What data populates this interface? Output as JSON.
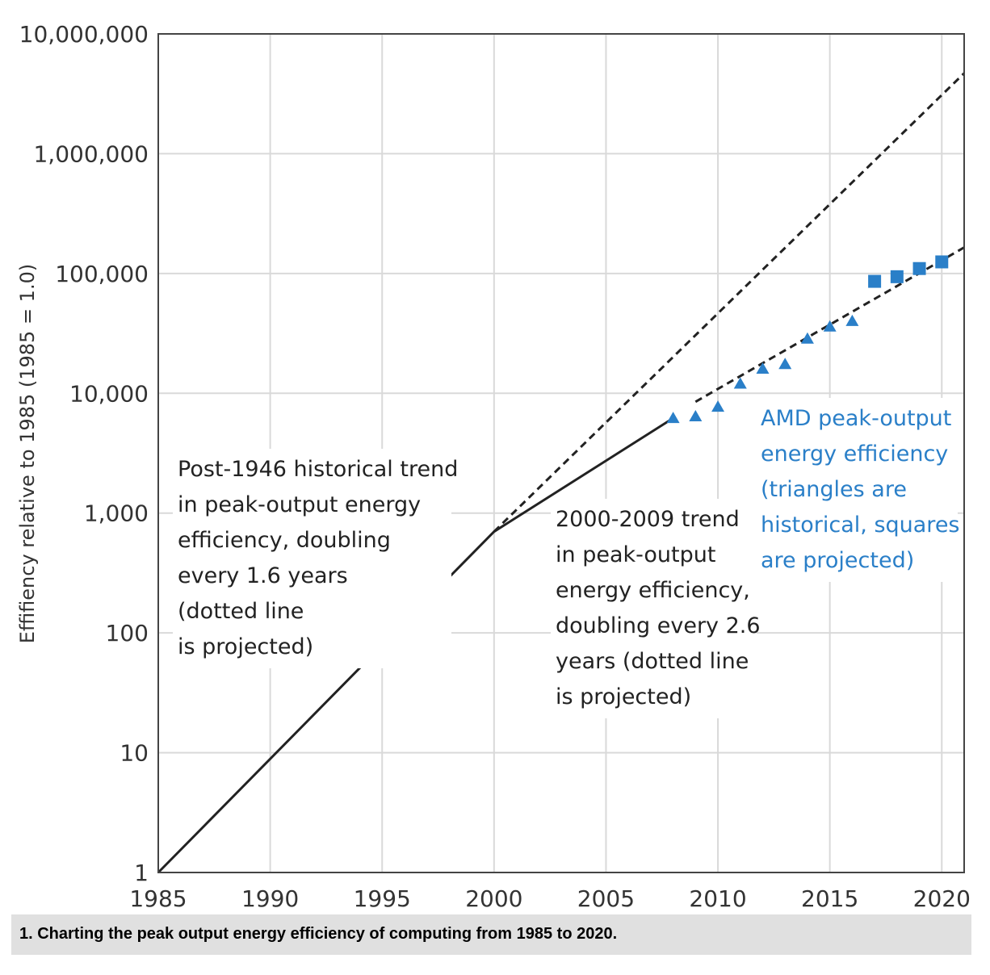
{
  "caption": "1. Charting the peak output energy efficiency of computing from 1985 to 2020.",
  "chart_data": {
    "type": "line",
    "title": "",
    "xlabel": "",
    "ylabel": "Effifiency relative to 1985 (1985 = 1.0)",
    "yscale": "log",
    "xlim": [
      1985,
      2021
    ],
    "ylim": [
      1,
      10000000
    ],
    "grid": true,
    "x_ticks": [
      "1985",
      "1990",
      "1995",
      "2000",
      "2005",
      "2010",
      "2015",
      "2020"
    ],
    "y_ticks": [
      "1",
      "10",
      "100",
      "1,000",
      "10,000",
      "100,000",
      "1,000,000",
      "10,000,000"
    ],
    "series": [
      {
        "style": "solid",
        "color": "#222222",
        "points": [
          [
            1985,
            1
          ],
          [
            2000,
            700
          ],
          [
            2008,
            6200
          ]
        ]
      },
      {
        "style": "dashed",
        "color": "#222222",
        "points": [
          [
            2000,
            700
          ],
          [
            2021,
            4700000
          ]
        ]
      },
      {
        "style": "dashed",
        "color": "#222222",
        "points": [
          [
            2009,
            8500
          ],
          [
            2021,
            165000
          ]
        ]
      },
      {
        "style": "triangle",
        "color": "#2a7fc8",
        "points": [
          [
            2008,
            6200
          ],
          [
            2009,
            6400
          ],
          [
            2010,
            7700
          ],
          [
            2011,
            12000
          ],
          [
            2012,
            16000
          ],
          [
            2013,
            17500
          ],
          [
            2014,
            28500
          ],
          [
            2015,
            36000
          ],
          [
            2016,
            40000
          ]
        ]
      },
      {
        "style": "square",
        "color": "#2a7fc8",
        "points": [
          [
            2017,
            86000
          ],
          [
            2018,
            94000
          ],
          [
            2019,
            110000
          ],
          [
            2020,
            125000
          ]
        ]
      }
    ],
    "annotations": [
      {
        "id": "post1946",
        "color": "#222222",
        "lines": [
          "Post-1946 historical trend",
          "in peak-output energy",
          "efficiency, doubling",
          "every 1.6 years",
          "(dotted line",
          "is projected)"
        ]
      },
      {
        "id": "trend2000",
        "color": "#222222",
        "lines": [
          "2000-2009 trend",
          "in peak-output",
          "energy efficiency,",
          "doubling every 2.6",
          "years (dotted line",
          "is projected)"
        ]
      },
      {
        "id": "amd",
        "color": "#2a7fc8",
        "lines": [
          "AMD peak-output",
          "energy efficiency",
          "(triangles are",
          "historical, squares",
          "are projected)"
        ]
      }
    ]
  }
}
